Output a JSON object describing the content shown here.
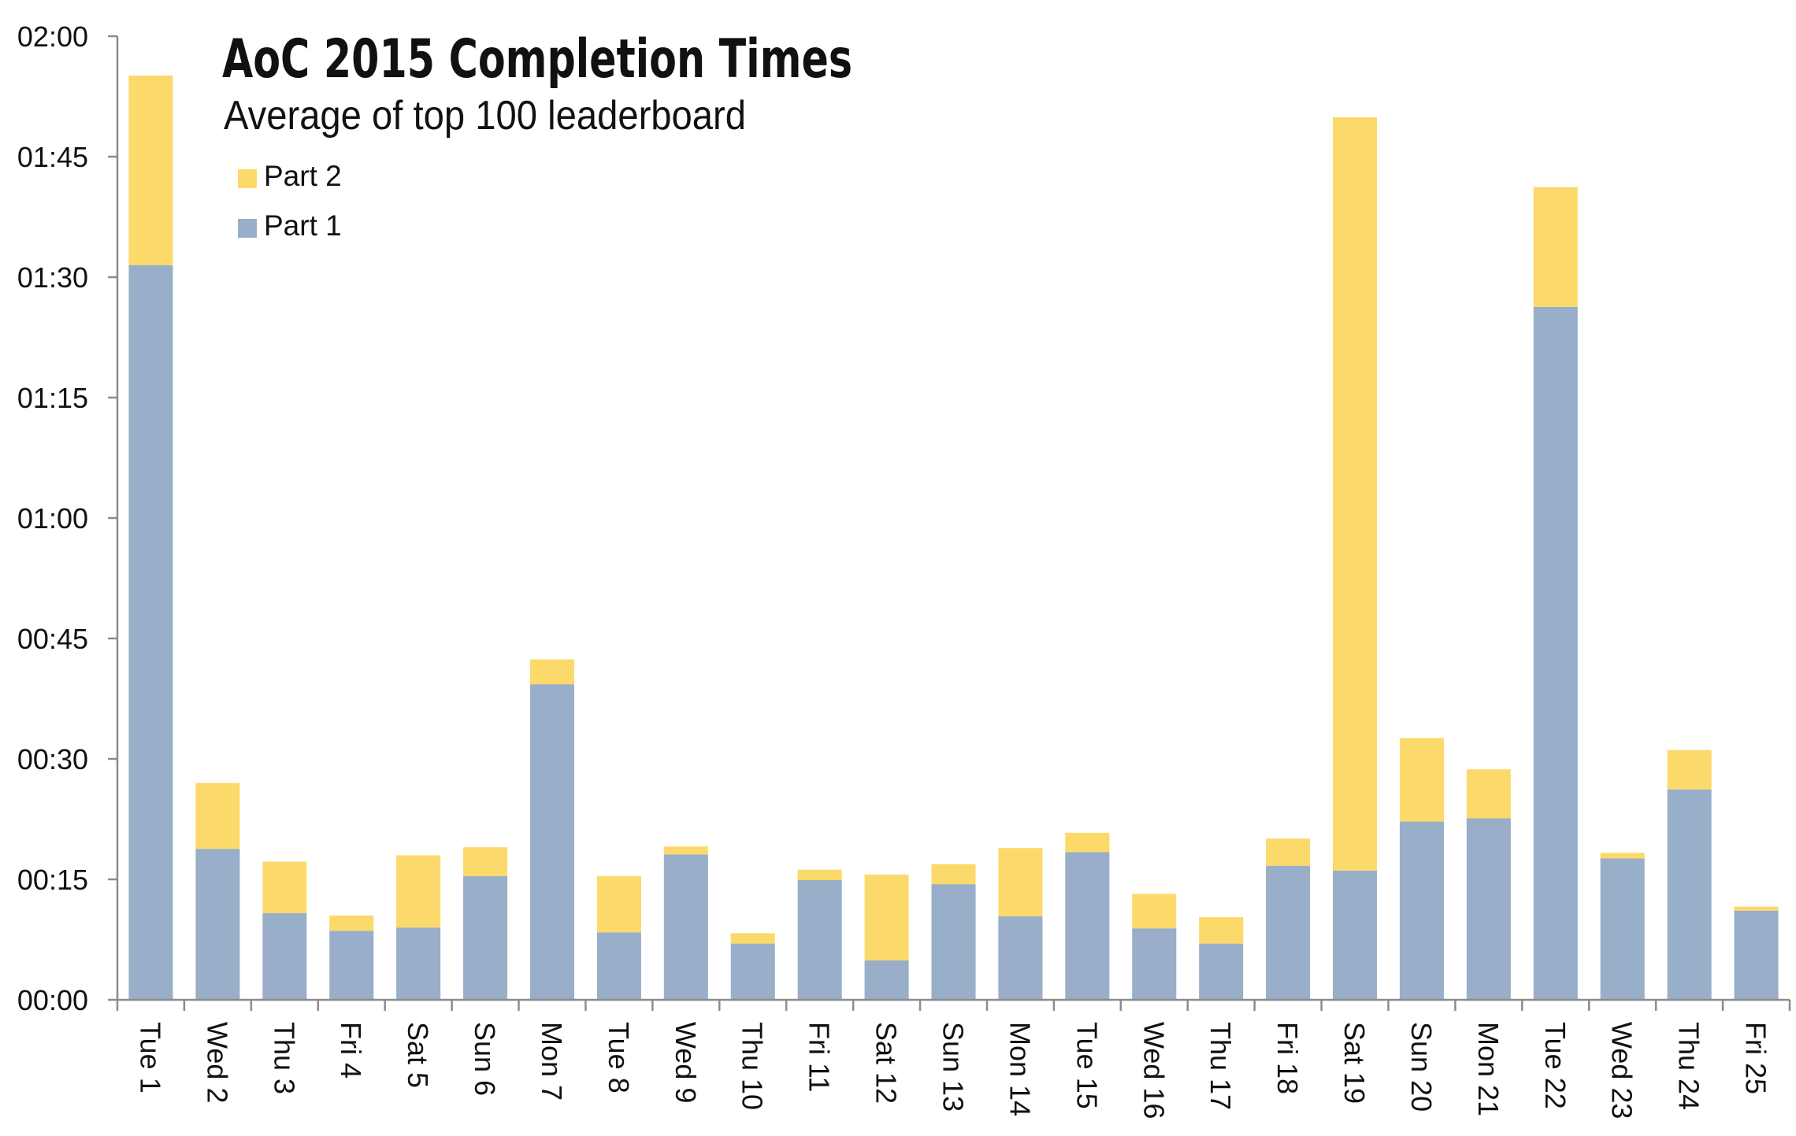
{
  "chart_data": {
    "type": "bar",
    "stacked": true,
    "title": "AoC 2015 Completion Times",
    "subtitle": "Average of top 100 leaderboard",
    "xlabel": "",
    "ylabel": "",
    "ylim": [
      0,
      120
    ],
    "y_unit": "minutes",
    "y_ticks": [
      {
        "value": 0,
        "label": "00:00"
      },
      {
        "value": 15,
        "label": "00:15"
      },
      {
        "value": 30,
        "label": "00:30"
      },
      {
        "value": 45,
        "label": "00:45"
      },
      {
        "value": 60,
        "label": "01:00"
      },
      {
        "value": 75,
        "label": "01:15"
      },
      {
        "value": 90,
        "label": "01:30"
      },
      {
        "value": 105,
        "label": "01:45"
      },
      {
        "value": 120,
        "label": "02:00"
      }
    ],
    "grid": false,
    "legend_position": "top-left",
    "categories": [
      "Tue 1",
      "Wed 2",
      "Thu 3",
      "Fri 4",
      "Sat 5",
      "Sun 6",
      "Mon 7",
      "Tue 8",
      "Wed 9",
      "Thu 10",
      "Fri 11",
      "Sat 12",
      "Sun 13",
      "Mon 14",
      "Tue 15",
      "Wed 16",
      "Thu 17",
      "Fri 18",
      "Sat 19",
      "Sun 20",
      "Mon 21",
      "Tue 22",
      "Wed 23",
      "Thu 24",
      "Fri 25"
    ],
    "series": [
      {
        "name": "Part 1",
        "color": "#99aec8",
        "values": [
          91.5,
          18.8,
          10.8,
          8.6,
          9.0,
          15.4,
          39.3,
          8.4,
          18.1,
          7.0,
          14.9,
          4.9,
          14.4,
          10.4,
          18.4,
          8.9,
          7.0,
          16.7,
          16.1,
          22.2,
          22.6,
          86.3,
          17.6,
          26.2,
          11.1
        ]
      },
      {
        "name": "Part 2",
        "color": "#fcd96b",
        "values": [
          23.6,
          8.2,
          6.4,
          1.9,
          9.0,
          3.6,
          3.1,
          7.0,
          1.0,
          1.3,
          1.3,
          10.7,
          2.5,
          8.5,
          2.4,
          4.3,
          3.3,
          3.4,
          93.8,
          10.4,
          6.1,
          14.9,
          0.7,
          4.9,
          0.5
        ]
      }
    ],
    "legend_order": [
      "Part 2",
      "Part 1"
    ]
  }
}
